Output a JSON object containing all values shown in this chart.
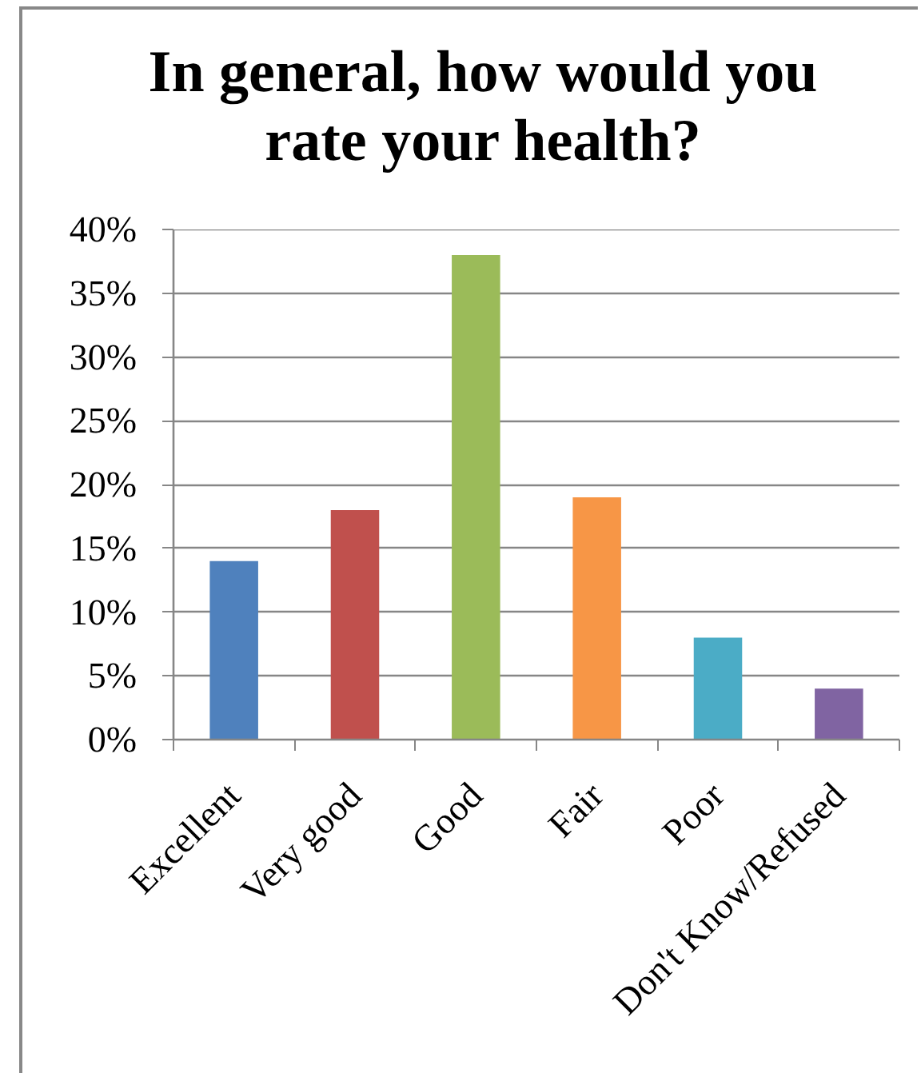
{
  "chart_data": {
    "type": "bar",
    "title": "In general, how would you rate your health?",
    "categories": [
      "Excellent",
      "Very good",
      "Good",
      "Fair",
      "Poor",
      "Don't Know/Refused"
    ],
    "values": [
      14,
      18,
      38,
      19,
      8,
      4
    ],
    "colors": [
      "#4f81bd",
      "#c0504d",
      "#9bbb59",
      "#f79646",
      "#4bacc6",
      "#8064a2"
    ],
    "ylim": [
      0,
      40
    ],
    "yticks": [
      {
        "value": 0,
        "label": "0%"
      },
      {
        "value": 5,
        "label": "5%"
      },
      {
        "value": 10,
        "label": "10%"
      },
      {
        "value": 15,
        "label": "15%"
      },
      {
        "value": 20,
        "label": "20%"
      },
      {
        "value": 25,
        "label": "25%"
      },
      {
        "value": 30,
        "label": "30%"
      },
      {
        "value": 35,
        "label": "35%"
      },
      {
        "value": 40,
        "label": "40%"
      }
    ],
    "grid": "y"
  }
}
